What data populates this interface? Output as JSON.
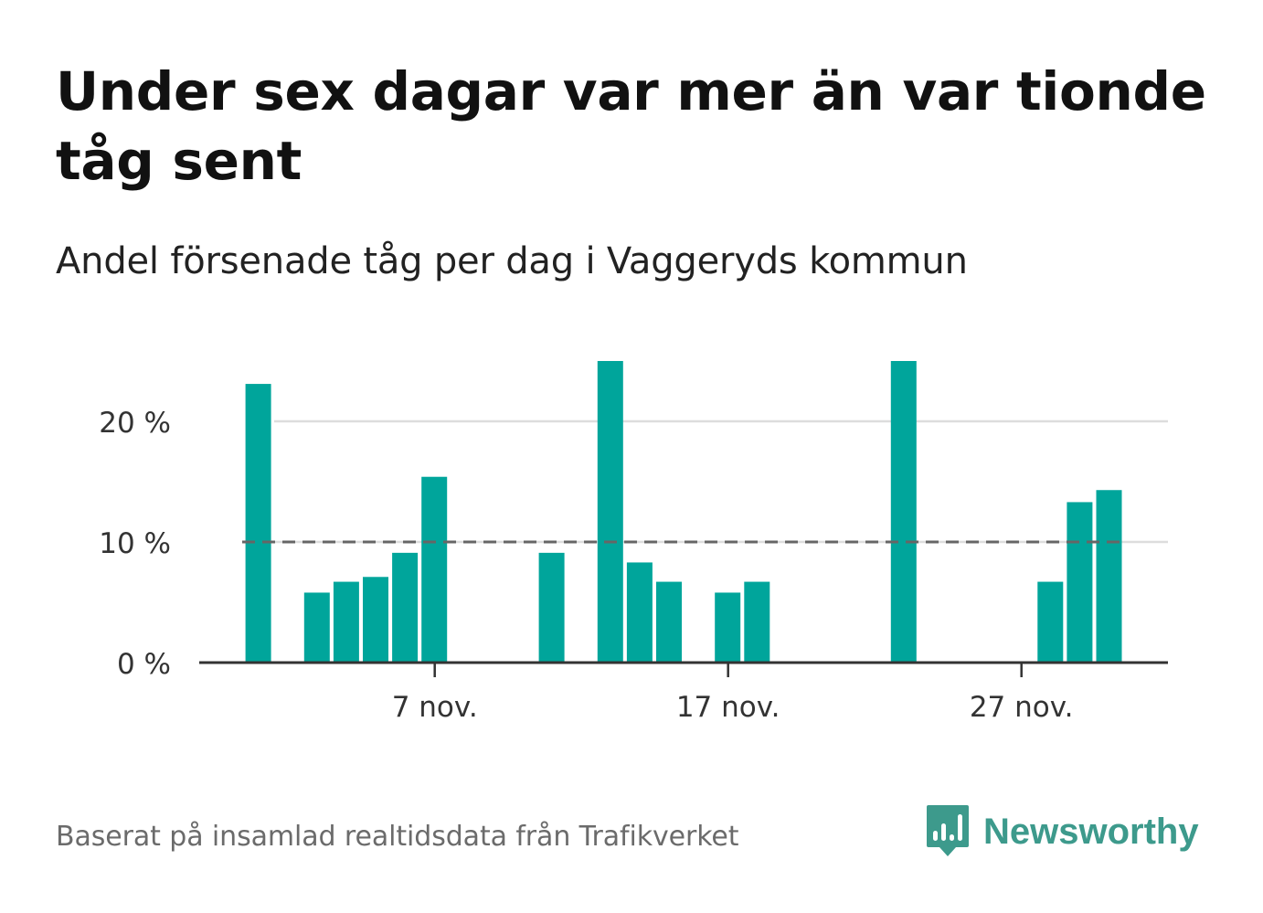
{
  "title": "Under sex dagar var mer än var tionde tåg sent",
  "subtitle": "Andel försenade tåg per dag i Vaggeryds kommun",
  "source": "Baserat på insamlad realtidsdata från Trafikverket",
  "brand": {
    "name": "Newsworthy",
    "color": "#3d9a8c",
    "icon": "newsworthy-logo-icon"
  },
  "chart_data": {
    "type": "bar",
    "bar_color": "#00a59b",
    "reference_line": {
      "value": 10,
      "style": "dashed",
      "color": "#666666"
    },
    "ylim": [
      0,
      25
    ],
    "yticks": [
      {
        "value": 0,
        "label": "0 %"
      },
      {
        "value": 10,
        "label": "10 %"
      },
      {
        "value": 20,
        "label": "20 %"
      }
    ],
    "xticks": [
      {
        "day": 7,
        "label": "7 nov."
      },
      {
        "day": 17,
        "label": "17 nov."
      },
      {
        "day": 27,
        "label": "27 nov."
      }
    ],
    "x_range_days": [
      0,
      33
    ],
    "days": [
      1,
      2,
      3,
      4,
      5,
      6,
      7,
      8,
      9,
      10,
      11,
      12,
      13,
      14,
      15,
      16,
      17,
      18,
      19,
      20,
      21,
      22,
      23,
      24,
      25,
      26,
      27,
      28,
      29,
      30
    ],
    "values": [
      23.1,
      0,
      5.8,
      6.7,
      7.1,
      9.1,
      15.4,
      0,
      0,
      0,
      9.1,
      0,
      25,
      8.3,
      6.7,
      0,
      5.8,
      6.7,
      0,
      0,
      0,
      0,
      25,
      0,
      0,
      0,
      0,
      6.7,
      13.3,
      14.3
    ],
    "xlabel": "",
    "ylabel": "",
    "grid": true
  }
}
